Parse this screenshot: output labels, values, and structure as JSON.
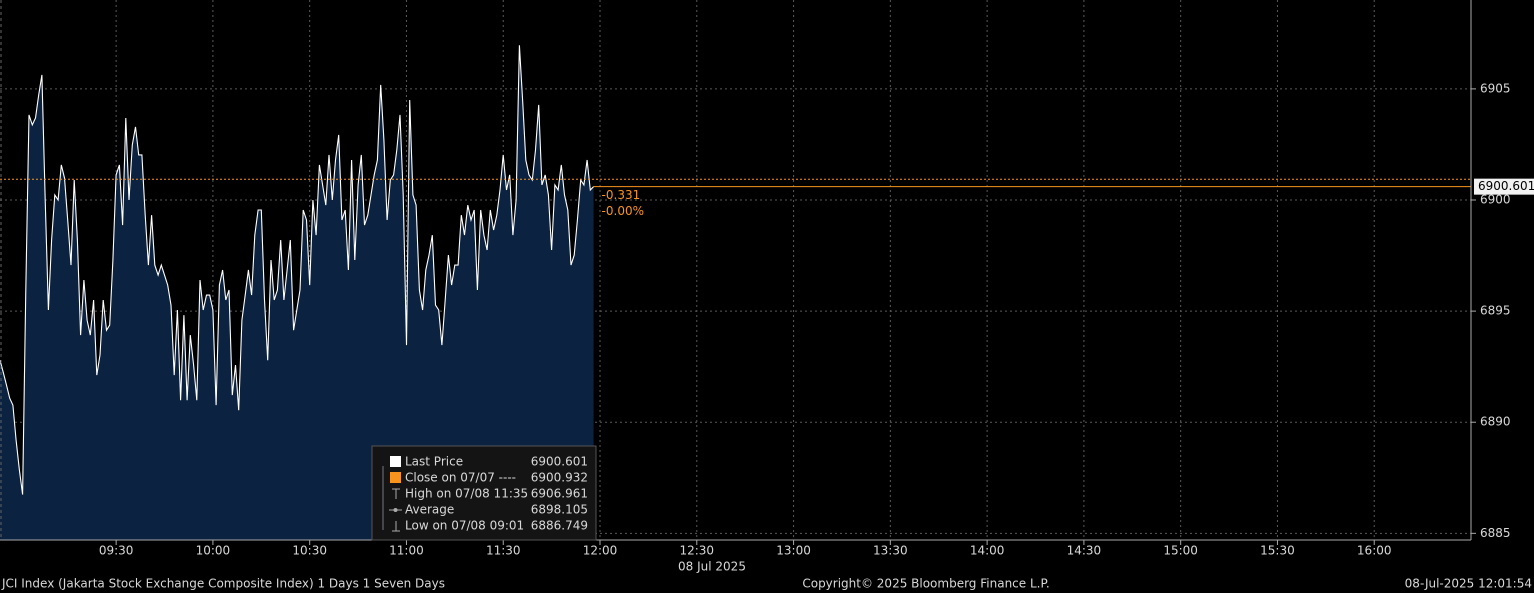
{
  "chart_data": {
    "type": "area",
    "series": [
      {
        "name": "Last Price",
        "color": "#ffffff",
        "fill": "#0b2240",
        "values": [
          6892.79,
          6892.25,
          6891.67,
          6891.08,
          6890.77,
          6889.19,
          6887.84,
          6886.749,
          6895.95,
          6903.83,
          6903.38,
          6903.69,
          6904.73,
          6905.63,
          6900.0,
          6895.05,
          6898.2,
          6900.23,
          6900.0,
          6901.58,
          6900.99,
          6899.1,
          6897.07,
          6900.9,
          6898.2,
          6893.92,
          6896.4,
          6894.59,
          6893.92,
          6895.5,
          6892.12,
          6893.02,
          6895.5,
          6894.14,
          6894.37,
          6897.3,
          6901.13,
          6901.58,
          6898.87,
          6903.69,
          6900.0,
          6902.48,
          6903.29,
          6902.03,
          6902.03,
          6899.32,
          6897.07,
          6899.32,
          6897.07,
          6896.62,
          6897.07,
          6896.62,
          6896.17,
          6895.27,
          6892.12,
          6895.05,
          6890.99,
          6894.82,
          6890.99,
          6893.92,
          6892.57,
          6890.99,
          6896.4,
          6895.05,
          6895.72,
          6895.72,
          6895.05,
          6890.77,
          6896.17,
          6896.85,
          6895.5,
          6895.95,
          6891.22,
          6892.57,
          6890.54,
          6894.59,
          6895.72,
          6896.85,
          6895.72,
          6898.42,
          6899.55,
          6899.55,
          6895.5,
          6892.79,
          6897.3,
          6895.5,
          6895.95,
          6898.2,
          6895.5,
          6896.85,
          6898.2,
          6894.14,
          6895.05,
          6895.95,
          6899.55,
          6899.1,
          6896.17,
          6900.0,
          6898.42,
          6901.58,
          6900.68,
          6899.77,
          6902.03,
          6900.0,
          6901.8,
          6902.93,
          6899.1,
          6899.55,
          6896.85,
          6901.8,
          6897.3,
          6900.68,
          6902.03,
          6898.87,
          6899.32,
          6900.23,
          6901.13,
          6901.8,
          6905.18,
          6902.7,
          6899.1,
          6900.9,
          6901.13,
          6902.25,
          6903.83,
          6900.23,
          6893.47,
          6904.5,
          6900.23,
          6899.77,
          6895.95,
          6895.05,
          6896.85,
          6897.52,
          6898.42,
          6895.27,
          6895.05,
          6893.47,
          6895.5,
          6897.52,
          6896.17,
          6897.07,
          6897.07,
          6899.32,
          6898.42,
          6899.77,
          6899.1,
          6899.55,
          6895.95,
          6899.55,
          6898.42,
          6897.75,
          6899.55,
          6898.65,
          6899.32,
          6900.45,
          6902.03,
          6900.45,
          6901.13,
          6898.42,
          6900.0,
          6906.961,
          6904.5,
          6901.8,
          6901.13,
          6900.9,
          6902.25,
          6904.28,
          6900.68,
          6901.13,
          6900.23,
          6897.75,
          6900.68,
          6900.45,
          6901.58,
          6900.23,
          6899.55,
          6897.07,
          6897.52,
          6899.1,
          6900.9,
          6900.68,
          6901.8,
          6900.45,
          6900.601
        ]
      }
    ],
    "x": [
      "08:54",
      "08:55",
      "08:56",
      "08:57",
      "08:58",
      "08:59",
      "09:00",
      "09:01",
      "09:02",
      "09:03",
      "09:04",
      "09:05",
      "09:06",
      "09:07",
      "09:08",
      "09:09",
      "09:10",
      "09:11",
      "09:12",
      "09:13",
      "09:14",
      "09:15",
      "09:16",
      "09:17",
      "09:18",
      "09:19",
      "09:20",
      "09:21",
      "09:22",
      "09:23",
      "09:24",
      "09:25",
      "09:26",
      "09:27",
      "09:28",
      "09:29",
      "09:30",
      "09:31",
      "09:32",
      "09:33",
      "09:34",
      "09:35",
      "09:36",
      "09:37",
      "09:38",
      "09:39",
      "09:40",
      "09:41",
      "09:42",
      "09:43",
      "09:44",
      "09:45",
      "09:46",
      "09:47",
      "09:48",
      "09:49",
      "09:50",
      "09:51",
      "09:52",
      "09:53",
      "09:54",
      "09:55",
      "09:56",
      "09:57",
      "09:58",
      "09:59",
      "10:00",
      "10:01",
      "10:02",
      "10:03",
      "10:04",
      "10:05",
      "10:06",
      "10:07",
      "10:08",
      "10:09",
      "10:10",
      "10:11",
      "10:12",
      "10:13",
      "10:14",
      "10:15",
      "10:16",
      "10:17",
      "10:18",
      "10:19",
      "10:20",
      "10:21",
      "10:22",
      "10:23",
      "10:24",
      "10:25",
      "10:26",
      "10:27",
      "10:28",
      "10:29",
      "10:30",
      "10:31",
      "10:32",
      "10:33",
      "10:34",
      "10:35",
      "10:36",
      "10:37",
      "10:38",
      "10:39",
      "10:40",
      "10:41",
      "10:42",
      "10:43",
      "10:44",
      "10:45",
      "10:46",
      "10:47",
      "10:48",
      "10:49",
      "10:50",
      "10:51",
      "10:52",
      "10:53",
      "10:54",
      "10:55",
      "10:56",
      "10:57",
      "10:58",
      "10:59",
      "11:00",
      "11:01",
      "11:02",
      "11:03",
      "11:04",
      "11:05",
      "11:06",
      "11:07",
      "11:08",
      "11:09",
      "11:10",
      "11:11",
      "11:12",
      "11:13",
      "11:14",
      "11:15",
      "11:16",
      "11:17",
      "11:18",
      "11:19",
      "11:20",
      "11:21",
      "11:22",
      "11:23",
      "11:24",
      "11:25",
      "11:26",
      "11:27",
      "11:28",
      "11:29",
      "11:30",
      "11:31",
      "11:32",
      "11:33",
      "11:34",
      "11:35",
      "11:36",
      "11:37",
      "11:38",
      "11:39",
      "11:40",
      "11:41",
      "11:42",
      "11:43",
      "11:44",
      "11:45",
      "11:46",
      "11:47",
      "11:48",
      "11:49",
      "11:50",
      "11:51",
      "11:52",
      "11:53",
      "11:54",
      "11:55",
      "11:56",
      "11:57",
      "11:58"
    ],
    "xlim": [
      "08:54",
      "16:30"
    ],
    "xticks": [
      "09:30",
      "10:00",
      "10:30",
      "11:00",
      "11:30",
      "12:00",
      "12:30",
      "13:00",
      "13:30",
      "14:00",
      "14:30",
      "15:00",
      "15:30",
      "16:00"
    ],
    "xlabel": "08 Jul 2025",
    "ylim": [
      6884.7,
      6909
    ],
    "yticks": [
      6885,
      6890,
      6895,
      6900,
      6905
    ],
    "grid": true,
    "last_price": 6900.601,
    "close": {
      "label": "Close on 07/07 ----",
      "value": 6900.932,
      "color": "#f7941d"
    },
    "high": {
      "label": "High on 07/08 11:35",
      "value": 6906.961
    },
    "average": {
      "label": "Average",
      "value": 6898.105
    },
    "low": {
      "label": "Low on 07/08 09:01",
      "value": 6886.749
    },
    "change": -0.331,
    "change_pct": "-0.00%",
    "footer": {
      "left": "JCI Index (Jakarta Stock Exchange Composite Index) 1 Days 1 Seven Days",
      "center": "Copyright© 2025 Bloomberg Finance L.P.",
      "right": "08-Jul-2025 12:01:54"
    }
  }
}
